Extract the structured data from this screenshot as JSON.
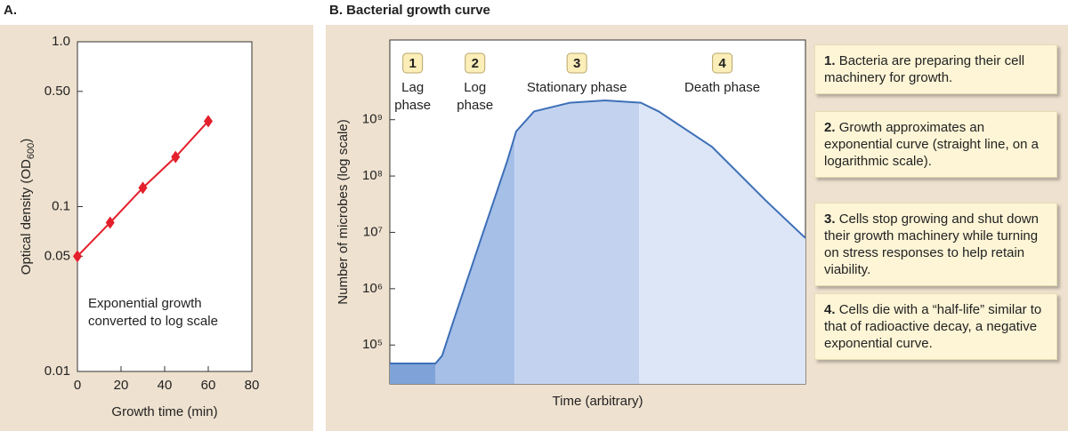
{
  "chart_data": [
    {
      "type": "line",
      "title": "A.",
      "x_label": "Growth time (min)",
      "y_label": [
        "Optical density (OD",
        "600",
        ")"
      ],
      "annotation": [
        "Exponential growth",
        "converted to log scale"
      ],
      "x": [
        0,
        15,
        30,
        45,
        60
      ],
      "values": [
        0.05,
        0.08,
        0.13,
        0.2,
        0.33
      ],
      "color": "#e3202b",
      "xlim": [
        0,
        80
      ],
      "xticks": [
        0,
        20,
        40,
        60,
        80
      ],
      "ylim": [
        0.01,
        1.0
      ],
      "log_scale": "y",
      "yticks": [
        0.01,
        0.05,
        0.1,
        {
          "value": 0.5,
          "label": "0.50"
        },
        {
          "value": 1.0,
          "label": "1.0"
        }
      ]
    },
    {
      "type": "area",
      "title": "B. Bacterial growth curve",
      "x_label": "Time (arbitrary)",
      "y_label": "Number of microbes (log scale)",
      "color": "#3d6fb8",
      "x": [
        0,
        11,
        12.6,
        15.4,
        21.8,
        28.3,
        30.4,
        34.7,
        43.3,
        51.8,
        60.4,
        64.7,
        77.5,
        90.4,
        100
      ],
      "values": [
        47000,
        47000,
        65000,
        280000,
        7200000,
        190000000,
        620000000,
        1400000000,
        2000000000,
        2200000000,
        2000000000,
        1400000000,
        330000000,
        37000000,
        7900000
      ],
      "xlim": [
        0,
        100
      ],
      "ylim": [
        20400,
        26000000000
      ],
      "log_scale": "y",
      "yticks": [
        {
          "value": 100000,
          "label": "10⁵"
        },
        {
          "value": 1000000,
          "label": "10⁶"
        },
        {
          "value": 10000000,
          "label": "10⁷"
        },
        {
          "value": 100000000,
          "label": "10⁸"
        },
        {
          "value": 1000000000,
          "label": "10⁹"
        }
      ],
      "phases": [
        {
          "number": "1",
          "label": [
            "Lag",
            "phase"
          ],
          "xlim": [
            0,
            11
          ],
          "color": "#7fa3d8"
        },
        {
          "number": "2",
          "label": [
            "Log",
            "phase"
          ],
          "xlim": [
            11,
            30
          ],
          "color": "#a5bfe7"
        },
        {
          "number": "3",
          "label": [
            "Stationary phase"
          ],
          "xlim": [
            30,
            60
          ],
          "color": "#c3d3ef"
        },
        {
          "number": "4",
          "label": [
            "Death phase"
          ],
          "xlim": [
            60,
            100
          ],
          "color": "#dde6f6"
        }
      ]
    }
  ],
  "notes": [
    {
      "number": "1.",
      "text": "Bacteria are preparing their cell machinery for growth."
    },
    {
      "number": "2.",
      "text": "Growth approximates an exponential curve (straight line, on a logarithmic scale)."
    },
    {
      "number": "3.",
      "text": "Cells stop growing and shut down their growth machinery while turning on stress responses to help retain viability."
    },
    {
      "number": "4.",
      "text": "Cells die with a “half-life” similar to that of radioactive decay, a negative exponential curve."
    }
  ]
}
